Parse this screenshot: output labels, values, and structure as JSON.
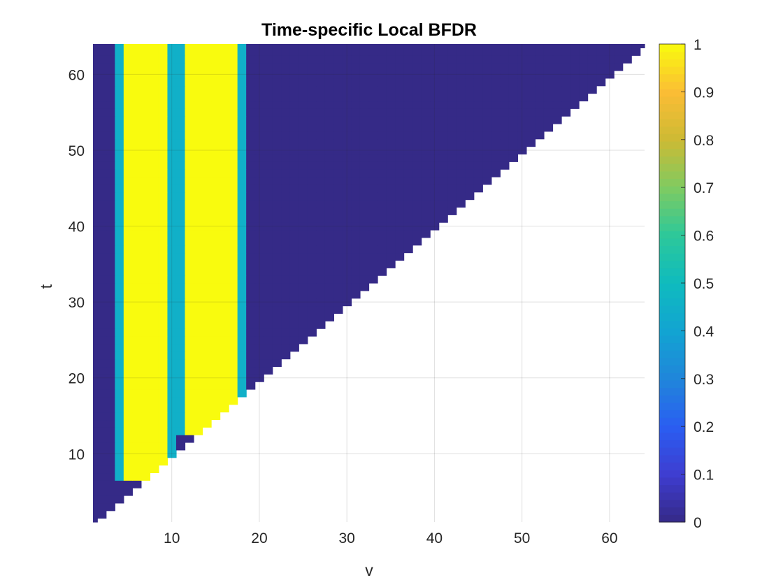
{
  "chart_data": {
    "type": "heatmap",
    "title": "Time-specific Local BFDR",
    "xlabel": "v",
    "ylabel": "t",
    "xlim": [
      1,
      64
    ],
    "ylim": [
      1,
      64
    ],
    "x_ticks": [
      10,
      20,
      30,
      40,
      50,
      60
    ],
    "y_ticks": [
      10,
      20,
      30,
      40,
      50,
      60
    ],
    "grid": true,
    "colormap": "parula",
    "colorbar": {
      "location": "right",
      "ticks": [
        0,
        0.1,
        0.2,
        0.3,
        0.4,
        0.5,
        0.6,
        0.7,
        0.8,
        0.9,
        1
      ],
      "labels": [
        "0",
        "0.1",
        "0.2",
        "0.3",
        "0.4",
        "0.5",
        "0.6",
        "0.7",
        "0.8",
        "0.9",
        "1"
      ]
    },
    "mask": "cells with v > t are empty (white)",
    "high_value_bands": [
      {
        "v_start": 5,
        "v_end": 9,
        "t_start": 7,
        "value": 1
      },
      {
        "v_start": 12,
        "v_end": 17,
        "t_start": 13,
        "value": 1
      }
    ],
    "background_value": 0
  }
}
